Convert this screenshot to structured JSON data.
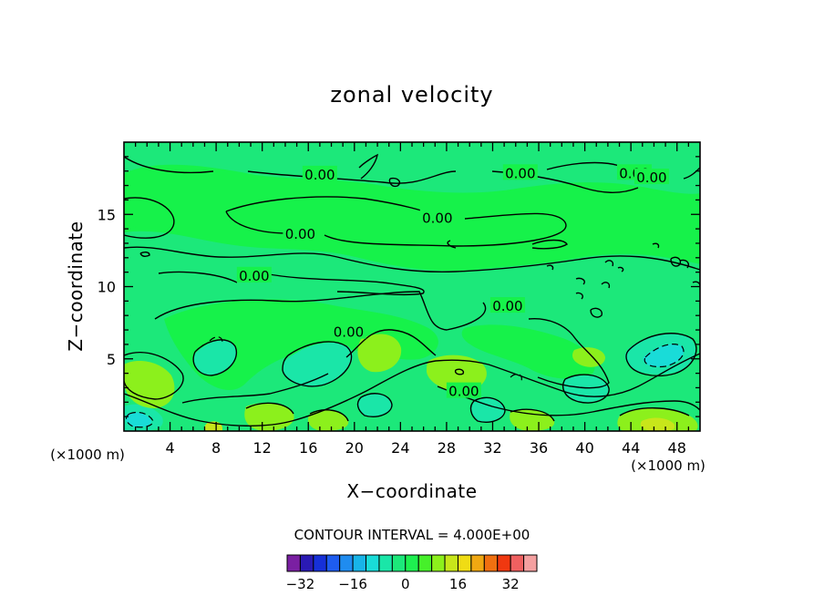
{
  "chart_data": {
    "type": "heatmap",
    "title": "zonal velocity",
    "xlabel": "X−coordinate",
    "ylabel": "Z−coordinate",
    "x_unit": "(×1000 m)",
    "y_unit": "(×1000 m)",
    "xlim": [
      0,
      50
    ],
    "ylim": [
      0,
      20
    ],
    "x_ticks": [
      4,
      8,
      12,
      16,
      20,
      24,
      28,
      32,
      36,
      40,
      44,
      48
    ],
    "y_ticks": [
      5,
      10,
      15
    ],
    "x_tick_labels": [
      "4",
      "8",
      "12",
      "16",
      "20",
      "24",
      "28",
      "32",
      "36",
      "40",
      "44",
      "48"
    ],
    "y_tick_labels": [
      "5",
      "10",
      "15"
    ],
    "contour_interval_text": "CONTOUR INTERVAL = 4.000E+00",
    "contour_label": "0.00",
    "colorbar": {
      "levels": [
        -36,
        -32,
        -28,
        -24,
        -20,
        -16,
        -12,
        -8,
        -4,
        0,
        4,
        8,
        12,
        16,
        20,
        24,
        28,
        32,
        36
      ],
      "colors": [
        "#7a1fa2",
        "#2a1ab4",
        "#1630d8",
        "#1e5cf0",
        "#1f8cf0",
        "#18b4e8",
        "#19dcd8",
        "#1ae6a8",
        "#1ce87a",
        "#1ef050",
        "#46f02a",
        "#8cf01c",
        "#c8e61a",
        "#f0dc14",
        "#f0a812",
        "#f07010",
        "#f03810",
        "#f06060",
        "#f4a0a0"
      ],
      "tick_values": [
        -32,
        -16,
        0,
        16,
        32
      ],
      "tick_labels": [
        "−32",
        "−16",
        "0",
        "16",
        "32"
      ]
    },
    "contour_label_positions": [
      {
        "x": 17,
        "y": 17.8
      },
      {
        "x": 34.4,
        "y": 17.9
      },
      {
        "x": 44.3,
        "y": 17.9
      },
      {
        "x": 45.8,
        "y": 17.6
      },
      {
        "x": 27.2,
        "y": 14.8
      },
      {
        "x": 15.3,
        "y": 13.7
      },
      {
        "x": 11.3,
        "y": 10.8
      },
      {
        "x": 33.3,
        "y": 8.7
      },
      {
        "x": 19.5,
        "y": 6.9
      },
      {
        "x": 29.5,
        "y": 2.8
      }
    ]
  }
}
